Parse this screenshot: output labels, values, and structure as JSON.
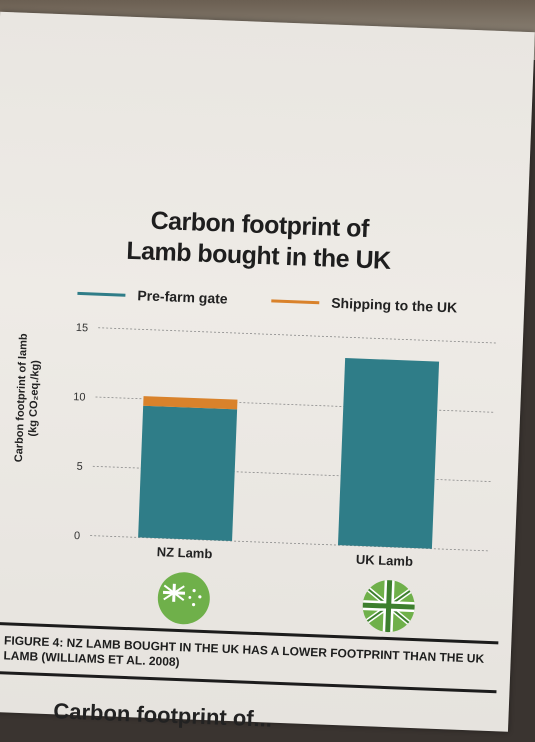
{
  "chart_data": {
    "type": "bar",
    "stacked": true,
    "title": [
      "Carbon footprint of",
      "Lamb bought in the UK"
    ],
    "ylabel": [
      "Carbon footprint of lamb",
      "(kg CO₂eq./kg)"
    ],
    "xlabel": "",
    "categories": [
      "NZ Lamb",
      "UK Lamb"
    ],
    "series": [
      {
        "name": "Pre-farm gate",
        "color": "#2f7d88",
        "values": [
          9.5,
          13.5
        ]
      },
      {
        "name": "Shipping to the UK",
        "color": "#d9822b",
        "values": [
          0.7,
          0
        ]
      }
    ],
    "ylim": [
      0,
      15
    ],
    "yticks": [
      0,
      5,
      10,
      15
    ],
    "grid": true,
    "legend_position": "top"
  },
  "flags": [
    {
      "category": "NZ Lamb",
      "icon": "new-zealand-flag-icon"
    },
    {
      "category": "UK Lamb",
      "icon": "united-kingdom-flag-icon"
    }
  ],
  "caption": "FIGURE 4: NZ LAMB BOUGHT IN THE UK HAS A LOWER FOOTPRINT THAN THE UK LAMB (WILLIAMS ET AL. 2008)",
  "next_heading": "Carbon footprint of..."
}
